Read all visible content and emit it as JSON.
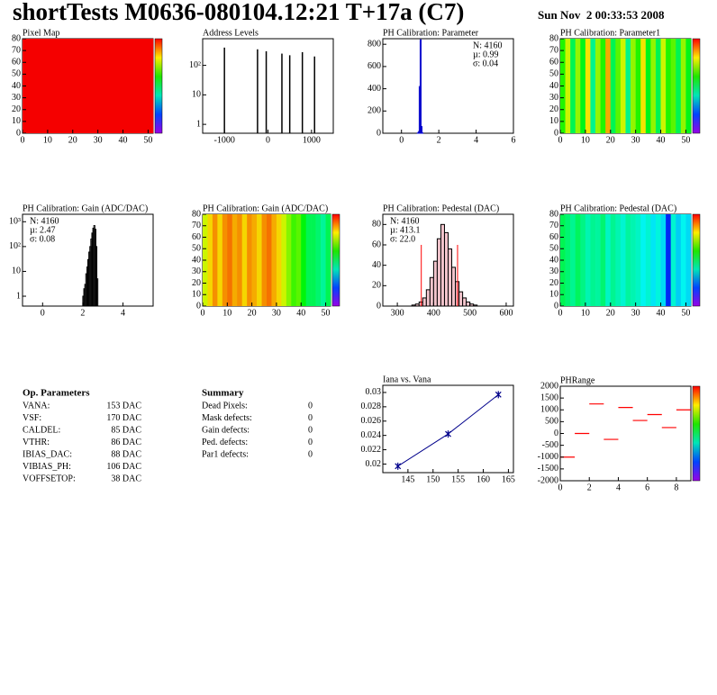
{
  "header": {
    "title": "shortTests M0636-080104.12:21 T+17a (C7)",
    "date": "Sun Nov  2 00:33:53 2008"
  },
  "chart_data": [
    {
      "type": "heatmap",
      "title": "Pixel Map",
      "xlim": [
        0,
        52
      ],
      "ylim": [
        0,
        80
      ],
      "xticks": [
        0,
        10,
        20,
        30,
        40,
        50
      ],
      "yticks": [
        0,
        10,
        20,
        30,
        40,
        50,
        60,
        70,
        80
      ],
      "zlim": [
        0,
        10
      ],
      "values": [
        10
      ]
    },
    {
      "type": "spikes",
      "title": "Address Levels",
      "logy": true,
      "xlim": [
        -1500,
        1500
      ],
      "ylim": [
        0.5,
        800
      ],
      "xticks": [
        -1000,
        0,
        1000
      ],
      "yticks": [
        1,
        10,
        {
          "value": 100,
          "label": "10²"
        }
      ],
      "color": "#000000",
      "x": [
        -1000,
        -240,
        -40,
        320,
        500,
        790,
        1070
      ],
      "values": [
        400,
        350,
        300,
        250,
        220,
        280,
        200
      ]
    },
    {
      "type": "histogram",
      "title": "PH Calibration: Parameter",
      "xlim": [
        -1,
        6
      ],
      "ylim": [
        0,
        850
      ],
      "xticks": [
        0,
        2,
        4,
        6
      ],
      "yticks": [
        0,
        200,
        400,
        600,
        800
      ],
      "color": "#0000cc",
      "fill": "none",
      "bins": [
        0.8,
        0.85,
        0.9,
        0.95,
        1.0,
        1.05,
        1.1,
        1.15,
        1.2
      ],
      "values": [
        0,
        2,
        15,
        420,
        840,
        60,
        3,
        0
      ],
      "stats_corner": "right",
      "stats": [
        {
          "text": "N: 4160",
          "color": "#0000cc"
        },
        {
          "text": "µ: 0.99",
          "color": "#0000cc"
        },
        {
          "text": "σ: 0.04",
          "color": "#0000cc"
        }
      ]
    },
    {
      "type": "heatmap",
      "title": "PH Calibration: Parameter1",
      "xlim": [
        0,
        52
      ],
      "ylim": [
        0,
        80
      ],
      "xticks": [
        0,
        10,
        20,
        30,
        40,
        50
      ],
      "yticks": [
        0,
        10,
        20,
        30,
        40,
        50,
        60,
        70,
        80
      ],
      "zlim": [
        0,
        1
      ],
      "values": [
        0.6,
        0.75,
        0.5,
        0.7,
        0.55,
        0.8,
        0.45,
        0.7,
        0.6,
        0.85,
        0.5,
        0.65,
        0.75,
        0.45,
        0.7,
        0.6,
        0.8,
        0.55,
        0.7,
        0.5,
        0.75,
        0.6,
        0.65,
        0.5,
        0.7,
        0.55
      ]
    },
    {
      "type": "histogram",
      "title": "PH Calibration: Gain (ADC/DAC)",
      "logy": true,
      "xlim": [
        -1,
        5.5
      ],
      "ylim": [
        0.4,
        2000
      ],
      "xticks": [
        0,
        2,
        4
      ],
      "yticks": [
        1,
        10,
        {
          "value": 100,
          "label": "10²"
        },
        {
          "value": 1000,
          "label": "10³"
        }
      ],
      "color": "#000000",
      "fill": "none",
      "bins": [
        2.0,
        2.05,
        2.1,
        2.15,
        2.2,
        2.25,
        2.3,
        2.35,
        2.4,
        2.45,
        2.5,
        2.55,
        2.6,
        2.65,
        2.7,
        2.75
      ],
      "values": [
        1,
        2,
        3,
        8,
        15,
        30,
        60,
        100,
        200,
        350,
        550,
        700,
        500,
        100,
        5
      ],
      "stats_corner": "left",
      "stats": [
        {
          "text": "N: 4160",
          "color": "#000000"
        },
        {
          "text": "µ: 2.47",
          "color": "#000000"
        },
        {
          "text": "σ: 0.08",
          "color": "#000000"
        }
      ]
    },
    {
      "type": "heatmap",
      "title": "PH Calibration: Gain (ADC/DAC)",
      "xlim": [
        0,
        52
      ],
      "ylim": [
        0,
        80
      ],
      "xticks": [
        0,
        10,
        20,
        30,
        40,
        50
      ],
      "yticks": [
        0,
        10,
        20,
        30,
        40,
        50,
        60,
        70,
        80
      ],
      "zlim": [
        1.9,
        2.7
      ],
      "values": [
        2.5,
        2.55,
        2.6,
        2.55,
        2.6,
        2.62,
        2.58,
        2.6,
        2.55,
        2.6,
        2.58,
        2.55,
        2.6,
        2.62,
        2.58,
        2.55,
        2.5,
        2.45,
        2.4,
        2.42,
        2.35,
        2.3,
        2.3,
        2.28,
        2.25,
        2.3
      ]
    },
    {
      "type": "histogram",
      "title": "PH Calibration: Pedestal (DAC)",
      "xlim": [
        260,
        620
      ],
      "ylim": [
        0,
        90
      ],
      "xticks": [
        300,
        400,
        500,
        600
      ],
      "yticks": [
        0,
        20,
        40,
        60,
        80
      ],
      "color": "#000000",
      "fill": "#f2c4cc",
      "bins": [
        340,
        350,
        360,
        370,
        380,
        390,
        400,
        410,
        420,
        430,
        440,
        450,
        460,
        470,
        480,
        490,
        500,
        510,
        520
      ],
      "values": [
        1,
        2,
        4,
        8,
        16,
        28,
        44,
        66,
        80,
        72,
        56,
        38,
        24,
        14,
        8,
        4,
        2,
        1
      ],
      "cut_lines": [
        366,
        466
      ],
      "cut_height": 60,
      "cut_color": "#ff0000",
      "stats_corner": "left",
      "stats": [
        {
          "text": "N: 4160",
          "color": "#000000"
        },
        {
          "text": "µ: 413.1",
          "color": "#ff0000"
        },
        {
          "text": "σ: 22.0",
          "color": "#ff0000"
        }
      ]
    },
    {
      "type": "heatmap",
      "title": "PH Calibration: Pedestal (DAC)",
      "xlim": [
        0,
        52
      ],
      "ylim": [
        0,
        80
      ],
      "xticks": [
        0,
        10,
        20,
        30,
        40,
        50
      ],
      "yticks": [
        0,
        10,
        20,
        30,
        40,
        50,
        60,
        70,
        80
      ],
      "zlim": [
        340,
        520
      ],
      "values": [
        430,
        425,
        420,
        428,
        422,
        415,
        420,
        418,
        425,
        412,
        420,
        415,
        410,
        418,
        415,
        412,
        405,
        410,
        402,
        408,
        400,
        372,
        410,
        398,
        405,
        400
      ]
    },
    {
      "type": "line",
      "title": "Iana vs. Vana",
      "xlim": [
        140,
        166
      ],
      "ylim": [
        0.0188,
        0.031
      ],
      "xticks": [
        145,
        150,
        155,
        160,
        165
      ],
      "yticks": [
        0.02,
        0.022,
        0.024,
        0.026,
        0.028,
        0.03
      ],
      "color": "#00008b",
      "x": [
        143,
        153,
        163
      ],
      "values": [
        0.0197,
        0.0242,
        0.0297
      ]
    },
    {
      "type": "segments",
      "title": "PHRange",
      "xlim": [
        0,
        9
      ],
      "ylim": [
        -2000,
        2000
      ],
      "xticks": [
        0,
        2,
        4,
        6,
        8
      ],
      "yticks": [
        -2000,
        -1500,
        -1000,
        -500,
        0,
        500,
        1000,
        1500,
        2000
      ],
      "color": "#ff0000",
      "values": [
        -1000,
        0,
        1250,
        -250,
        1100,
        550,
        800,
        250,
        1000
      ]
    }
  ],
  "op_parameters": {
    "title": "Op. Parameters",
    "rows": [
      {
        "name": "VANA:",
        "value": "153 DAC"
      },
      {
        "name": "VSF:",
        "value": "170 DAC"
      },
      {
        "name": "CALDEL:",
        "value": "85 DAC"
      },
      {
        "name": "VTHR:",
        "value": "86 DAC"
      },
      {
        "name": "IBIAS_DAC:",
        "value": "88 DAC"
      },
      {
        "name": "VIBIAS_PH:",
        "value": "106 DAC"
      },
      {
        "name": "VOFFSETOP:",
        "value": "38 DAC"
      }
    ]
  },
  "summary": {
    "title": "Summary",
    "rows": [
      {
        "label": "Dead Pixels:",
        "value": 0,
        "color": "#000000"
      },
      {
        "label": "Mask defects:",
        "value": 0,
        "color": "#000000"
      },
      {
        "label": "Gain defects:",
        "value": 0,
        "color": "#000000"
      },
      {
        "label": "Ped. defects:",
        "value": 0,
        "color": "#ff0000"
      },
      {
        "label": "Par1 defects:",
        "value": 0,
        "color": "#0000cc"
      }
    ]
  }
}
